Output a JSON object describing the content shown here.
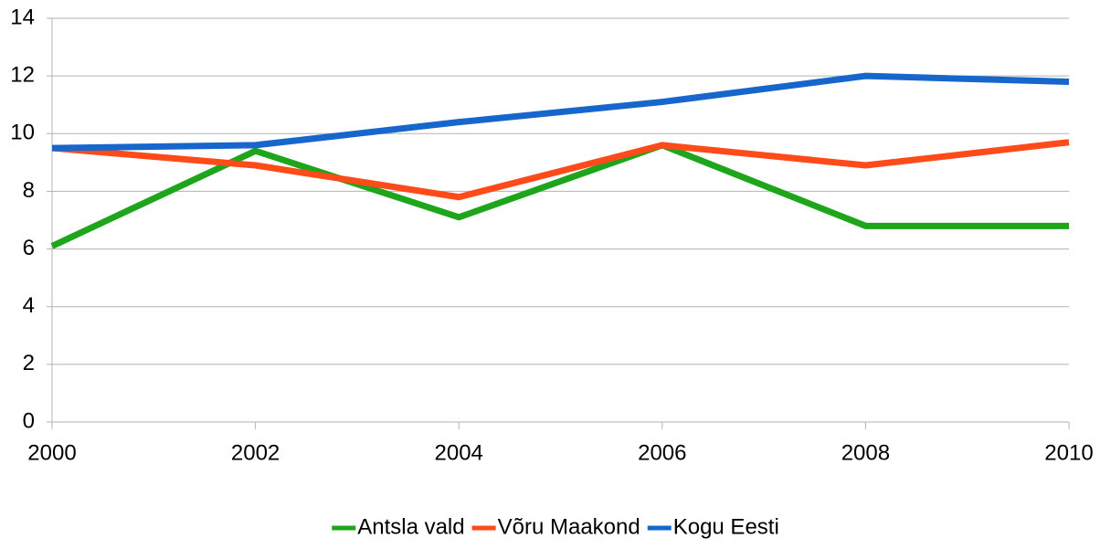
{
  "chart_data": {
    "type": "line",
    "x": [
      2000,
      2002,
      2004,
      2006,
      2008,
      2010
    ],
    "xlim": [
      2000,
      2010
    ],
    "xticks": [
      2000,
      2002,
      2004,
      2006,
      2008,
      2010
    ],
    "ylim": [
      0,
      14
    ],
    "yticks": [
      0,
      2,
      4,
      6,
      8,
      10,
      12,
      14
    ],
    "grid": true,
    "legend": "bottom",
    "series": [
      {
        "name": "Antsla vald",
        "color": "#1ea51b",
        "values": [
          6.1,
          9.4,
          7.1,
          9.6,
          6.8,
          6.8
        ]
      },
      {
        "name": "Võru Maakond",
        "color": "#ff4a1a",
        "values": [
          9.5,
          8.9,
          7.8,
          9.6,
          8.9,
          9.7
        ]
      },
      {
        "name": "Kogu Eesti",
        "color": "#1766cc",
        "values": [
          9.5,
          9.6,
          10.4,
          11.1,
          12.0,
          11.8
        ]
      }
    ]
  }
}
